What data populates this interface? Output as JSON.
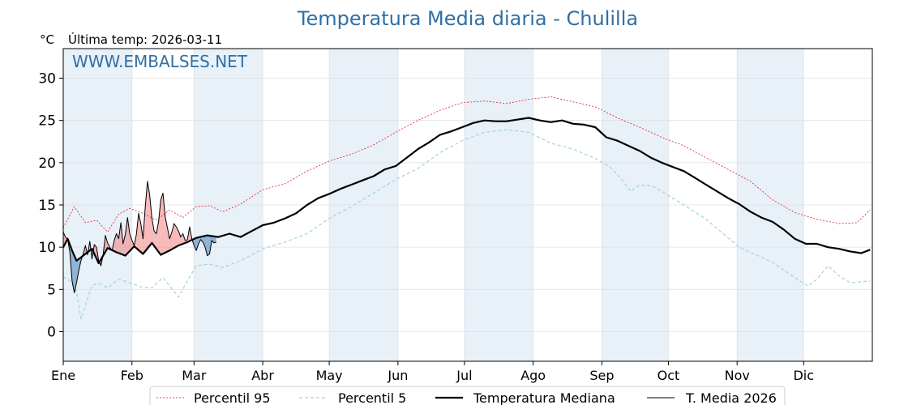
{
  "chart_data": {
    "type": "line",
    "title": "Temperatura Media diaria - Chulilla",
    "ylabel": "°C",
    "subtitle": "Última temp: 2026-03-11",
    "watermark": "WWW.EMBALSES.NET",
    "ylim": [
      -3.5,
      33.5
    ],
    "yticks": [
      0,
      5,
      10,
      15,
      20,
      25,
      30
    ],
    "days_in_year": 365,
    "months": [
      "Ene",
      "Feb",
      "Mar",
      "Abr",
      "May",
      "Jun",
      "Jul",
      "Ago",
      "Sep",
      "Oct",
      "Nov",
      "Dic"
    ],
    "month_start_day": [
      0,
      31,
      59,
      90,
      120,
      151,
      181,
      212,
      243,
      273,
      304,
      334
    ],
    "grid": true,
    "legend_placement": "bottom-center",
    "colors": {
      "p95": "#e41a1c",
      "p5": "#9fd3e0",
      "median": "#000000",
      "current": "#000000",
      "above_fill": "#f08080",
      "below_fill": "#4682b4",
      "shade": "#e8f0f8",
      "title": "#2f6fa4"
    },
    "series": [
      {
        "name": "Percentil 95",
        "key": "p95",
        "x": [
          0,
          5,
          10,
          15,
          20,
          25,
          30,
          36,
          42,
          48,
          54,
          60,
          66,
          72,
          80,
          90,
          100,
          110,
          120,
          130,
          140,
          150,
          160,
          170,
          180,
          190,
          200,
          210,
          220,
          230,
          240,
          250,
          260,
          270,
          280,
          290,
          300,
          310,
          320,
          330,
          340,
          350,
          358,
          364
        ],
        "y": [
          12.3,
          14.8,
          12.9,
          13.2,
          11.8,
          13.9,
          14.6,
          14.0,
          13.2,
          14.4,
          13.5,
          14.8,
          14.9,
          14.2,
          15.1,
          16.8,
          17.5,
          19.0,
          20.2,
          21.0,
          22.1,
          23.6,
          25.0,
          26.2,
          27.1,
          27.3,
          27.0,
          27.5,
          27.8,
          27.2,
          26.6,
          25.3,
          24.2,
          23.0,
          22.0,
          20.6,
          19.2,
          17.8,
          15.6,
          14.1,
          13.3,
          12.8,
          12.9,
          14.4
        ]
      },
      {
        "name": "Percentil 5",
        "key": "p5",
        "x": [
          0,
          3,
          6,
          8,
          10,
          13,
          16,
          20,
          25,
          30,
          35,
          40,
          45,
          52,
          56,
          60,
          66,
          72,
          80,
          90,
          100,
          110,
          120,
          130,
          140,
          150,
          160,
          170,
          180,
          190,
          200,
          210,
          220,
          230,
          240,
          247,
          252,
          256,
          260,
          266,
          270,
          280,
          290,
          300,
          305,
          310,
          320,
          330,
          336,
          340,
          345,
          350,
          355,
          364
        ],
        "y": [
          6.5,
          6.0,
          4.8,
          1.5,
          3.1,
          5.5,
          5.7,
          5.2,
          6.2,
          5.8,
          5.3,
          5.2,
          6.4,
          4.1,
          6.0,
          7.8,
          8.0,
          7.6,
          8.4,
          9.8,
          10.6,
          11.6,
          13.4,
          14.8,
          16.4,
          18.0,
          19.3,
          21.2,
          22.6,
          23.6,
          23.9,
          23.6,
          22.3,
          21.6,
          20.5,
          19.4,
          18.0,
          16.6,
          17.4,
          17.2,
          16.6,
          15.0,
          13.3,
          11.1,
          10.0,
          9.4,
          8.2,
          6.4,
          5.4,
          6.2,
          7.8,
          6.6,
          5.8,
          6.0
        ]
      },
      {
        "name": "Temperatura Mediana",
        "key": "median",
        "x": [
          0,
          2,
          4,
          6,
          8,
          10,
          13,
          16,
          20,
          24,
          28,
          32,
          36,
          40,
          44,
          48,
          52,
          56,
          60,
          65,
          70,
          75,
          80,
          85,
          90,
          95,
          100,
          105,
          110,
          115,
          120,
          125,
          130,
          135,
          140,
          145,
          150,
          155,
          160,
          165,
          170,
          175,
          180,
          185,
          190,
          195,
          200,
          205,
          210,
          215,
          220,
          225,
          230,
          235,
          240,
          245,
          250,
          255,
          260,
          265,
          270,
          275,
          280,
          285,
          290,
          295,
          300,
          305,
          310,
          315,
          320,
          325,
          330,
          335,
          340,
          345,
          350,
          355,
          360,
          364
        ],
        "y": [
          10.0,
          11.0,
          9.6,
          8.4,
          8.8,
          9.2,
          9.8,
          8.1,
          9.9,
          9.4,
          9.0,
          10.1,
          9.2,
          10.5,
          9.1,
          9.6,
          10.2,
          10.6,
          11.1,
          11.4,
          11.2,
          11.6,
          11.2,
          11.9,
          12.6,
          12.9,
          13.4,
          14.0,
          15.0,
          15.8,
          16.3,
          16.9,
          17.4,
          17.9,
          18.4,
          19.2,
          19.6,
          20.6,
          21.6,
          22.4,
          23.3,
          23.7,
          24.2,
          24.7,
          25.0,
          24.9,
          24.9,
          25.1,
          25.3,
          25.0,
          24.8,
          25.0,
          24.6,
          24.5,
          24.2,
          23.0,
          22.6,
          22.0,
          21.4,
          20.6,
          20.0,
          19.5,
          19.0,
          18.2,
          17.4,
          16.6,
          15.8,
          15.1,
          14.2,
          13.5,
          13.0,
          12.1,
          11.0,
          10.4,
          10.4,
          10.0,
          9.8,
          9.5,
          9.3,
          9.7
        ]
      },
      {
        "name": "T. Media 2026",
        "key": "current",
        "x": [
          0,
          1,
          2,
          3,
          4,
          5,
          6,
          7,
          8,
          9,
          10,
          11,
          12,
          13,
          14,
          15,
          16,
          17,
          18,
          19,
          20,
          21,
          22,
          23,
          24,
          25,
          26,
          27,
          28,
          29,
          30,
          31,
          32,
          33,
          34,
          35,
          36,
          37,
          38,
          39,
          40,
          41,
          42,
          43,
          44,
          45,
          46,
          47,
          48,
          49,
          50,
          51,
          52,
          53,
          54,
          55,
          56,
          57,
          58,
          59,
          60,
          61,
          62,
          63,
          64,
          65,
          66,
          67,
          68,
          69
        ],
        "y": [
          11.8,
          11.2,
          10.9,
          9.4,
          6.0,
          4.6,
          5.8,
          7.2,
          8.4,
          9.2,
          10.2,
          9.1,
          10.7,
          8.6,
          10.3,
          10.0,
          8.4,
          7.8,
          9.1,
          11.4,
          10.5,
          10.0,
          9.6,
          10.8,
          11.6,
          11.0,
          12.9,
          10.4,
          11.5,
          13.5,
          11.6,
          10.8,
          10.2,
          11.5,
          14.0,
          12.8,
          11.0,
          14.8,
          17.8,
          16.2,
          13.4,
          11.9,
          11.6,
          13.0,
          15.6,
          16.4,
          13.6,
          12.3,
          11.0,
          11.8,
          12.8,
          12.4,
          11.9,
          11.2,
          11.6,
          10.8,
          10.9,
          12.4,
          11.0,
          10.2,
          9.6,
          10.4,
          10.9,
          10.6,
          10.0,
          9.0,
          9.2,
          10.8,
          10.5,
          10.6
        ]
      }
    ]
  }
}
